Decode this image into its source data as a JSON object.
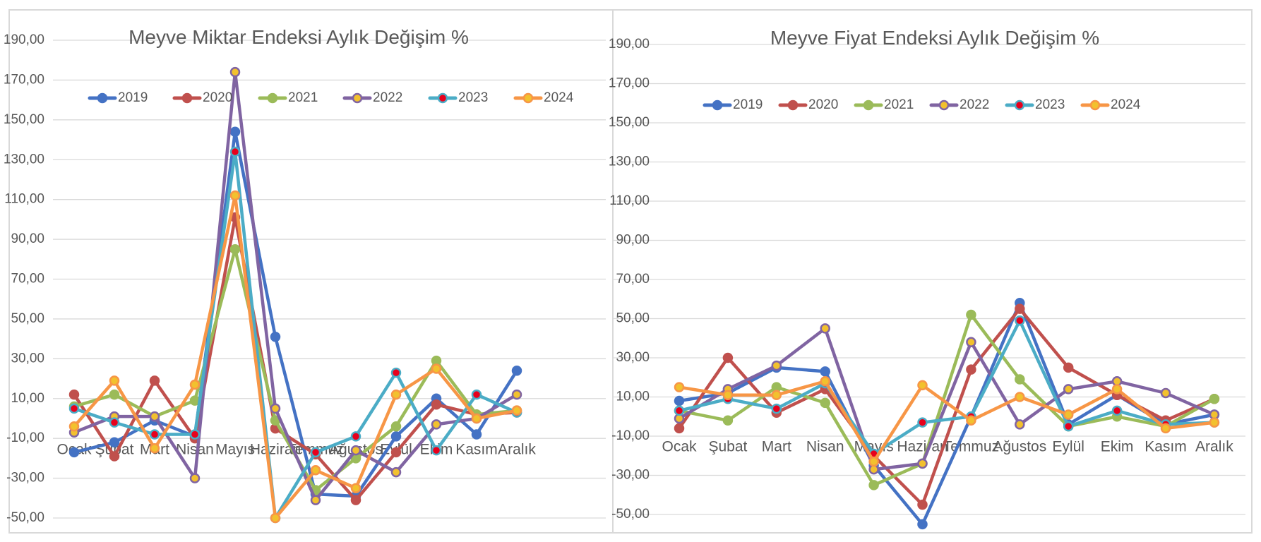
{
  "chart_data": [
    {
      "type": "line",
      "title": "Meyve Miktar Endeksi Aylık Değişim %",
      "categories": [
        "Ocak",
        "Şubat",
        "Mart",
        "Nisan",
        "Mayıs",
        "Haziran",
        "Temmuz",
        "Ağustos",
        "Eylül",
        "Ekim",
        "Kasım",
        "Aralık"
      ],
      "ylim": [
        -50,
        190
      ],
      "yticks": [
        "-50,00",
        "-30,00",
        "-10,00",
        "10,00",
        "30,00",
        "50,00",
        "70,00",
        "90,00",
        "110,00",
        "130,00",
        "150,00",
        "170,00",
        "190,00"
      ],
      "grid": true,
      "legend_position": "top",
      "series": [
        {
          "name": "2019",
          "color": "#4472C4",
          "marker": "#4472C4",
          "values": [
            -17,
            -12,
            -1,
            -9,
            144,
            41,
            -38,
            -39,
            -9,
            10,
            -8,
            24
          ]
        },
        {
          "name": "2020",
          "color": "#C0504D",
          "marker": "#C0504D",
          "values": [
            12,
            -19,
            19,
            -10,
            101,
            -5,
            -18,
            -41,
            -17,
            7,
            2,
            3
          ]
        },
        {
          "name": "2021",
          "color": "#9BBB59",
          "marker": "#9BBB59",
          "values": [
            6,
            12,
            1,
            9,
            85,
            -1,
            -36,
            -20,
            -4,
            29,
            2,
            4
          ]
        },
        {
          "name": "2022",
          "color": "#8064A2",
          "marker": "#F2C12E",
          "values": [
            -7,
            1,
            1,
            -30,
            174,
            5,
            -41,
            -16,
            -27,
            -3,
            0,
            12
          ]
        },
        {
          "name": "2023",
          "color": "#4BACC6",
          "marker": "#E8001C",
          "values": [
            5,
            -2,
            -8,
            -8,
            134,
            -50,
            -17,
            -9,
            23,
            -16,
            12,
            3
          ]
        },
        {
          "name": "2024",
          "color": "#F79646",
          "marker": "#F2C12E",
          "values": [
            -4,
            19,
            -15,
            17,
            112,
            -50,
            -26,
            -35,
            12,
            25,
            0,
            4
          ]
        }
      ]
    },
    {
      "type": "line",
      "title": "Meyve Fiyat Endeksi Aylık Değişim %",
      "categories": [
        "Ocak",
        "Şubat",
        "Mart",
        "Nisan",
        "Mayıs",
        "Haziran",
        "Temmuz",
        "Ağustos",
        "Eylül",
        "Ekim",
        "Kasım",
        "Aralık"
      ],
      "ylim": [
        -50,
        190
      ],
      "yticks": [
        "-50,00",
        "-30,00",
        "-10,00",
        "10,00",
        "30,00",
        "50,00",
        "70,00",
        "90,00",
        "110,00",
        "130,00",
        "150,00",
        "170,00",
        "190,00"
      ],
      "grid": true,
      "legend_position": "top",
      "series": [
        {
          "name": "2019",
          "color": "#4472C4",
          "marker": "#4472C4",
          "values": [
            8,
            12,
            25,
            23,
            -25,
            -55,
            0,
            58,
            -4,
            11,
            -4,
            1
          ]
        },
        {
          "name": "2020",
          "color": "#C0504D",
          "marker": "#C0504D",
          "values": [
            -6,
            30,
            2,
            14,
            -20,
            -45,
            24,
            55,
            25,
            11,
            -2,
            9
          ]
        },
        {
          "name": "2021",
          "color": "#9BBB59",
          "marker": "#9BBB59",
          "values": [
            3,
            -2,
            15,
            7,
            -35,
            -24,
            52,
            19,
            -5,
            0,
            -5,
            9
          ]
        },
        {
          "name": "2022",
          "color": "#8064A2",
          "marker": "#F2C12E",
          "values": [
            -1,
            14,
            26,
            45,
            -27,
            -24,
            38,
            -4,
            14,
            18,
            12,
            1
          ]
        },
        {
          "name": "2023",
          "color": "#4BACC6",
          "marker": "#E8001C",
          "values": [
            3,
            9,
            4,
            17,
            -19,
            -3,
            0,
            49,
            -5,
            3,
            -4,
            -3
          ]
        },
        {
          "name": "2024",
          "color": "#F79646",
          "marker": "#F2C12E",
          "values": [
            15,
            11,
            11,
            18,
            -23,
            16,
            -2,
            10,
            1,
            14,
            -6,
            -3
          ]
        }
      ]
    }
  ]
}
